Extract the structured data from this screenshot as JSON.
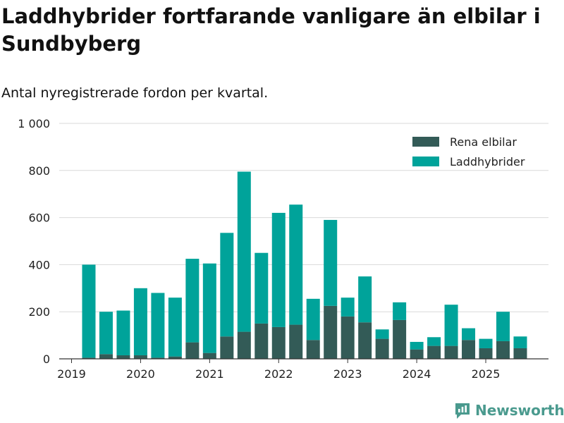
{
  "title": "Laddhybrider fortfarande vanligare än elbilar i Sundbyberg",
  "subtitle": "Antal nyregistrerade fordon per kvartal.",
  "brand": "Newsworthy",
  "colors": {
    "elbil": "#335b57",
    "laddhybrid": "#00a39a",
    "grid": "#d9d9d9",
    "axis": "#333333",
    "brand": "#4a9a8e"
  },
  "chart_data": {
    "type": "bar",
    "stacked": true,
    "title": "Laddhybrider fortfarande vanligare än elbilar i Sundbyberg",
    "subtitle": "Antal nyregistrerade fordon per kvartal.",
    "xlabel": "",
    "ylabel": "",
    "ylim": [
      0,
      1000
    ],
    "yticks": [
      0,
      200,
      400,
      600,
      800,
      1000
    ],
    "ytick_labels": [
      "0",
      "200",
      "400",
      "600",
      "800",
      "1 000"
    ],
    "xtick_labels": [
      "2019",
      "2020",
      "2021",
      "2022",
      "2023",
      "2024",
      "2025"
    ],
    "legend_position": "top-right",
    "categories": [
      "2019 Q2",
      "2019 Q3",
      "2019 Q4",
      "2020 Q1",
      "2020 Q2",
      "2020 Q3",
      "2020 Q4",
      "2021 Q1",
      "2021 Q2",
      "2021 Q3",
      "2021 Q4",
      "2022 Q1",
      "2022 Q2",
      "2022 Q3",
      "2022 Q4",
      "2023 Q1",
      "2023 Q2",
      "2023 Q3",
      "2023 Q4",
      "2024 Q1",
      "2024 Q2",
      "2024 Q3",
      "2024 Q4",
      "2025 Q1",
      "2025 Q2",
      "2025 Q3"
    ],
    "series": [
      {
        "name": "Rena elbilar",
        "values": [
          5,
          20,
          15,
          15,
          5,
          10,
          70,
          25,
          95,
          115,
          150,
          135,
          145,
          80,
          225,
          180,
          155,
          85,
          165,
          40,
          55,
          55,
          80,
          45,
          75,
          45
        ]
      },
      {
        "name": "Laddhybrider",
        "values": [
          395,
          180,
          190,
          285,
          275,
          250,
          355,
          380,
          440,
          680,
          300,
          485,
          510,
          175,
          365,
          80,
          195,
          40,
          75,
          32,
          37,
          175,
          50,
          40,
          125,
          50
        ]
      }
    ]
  }
}
